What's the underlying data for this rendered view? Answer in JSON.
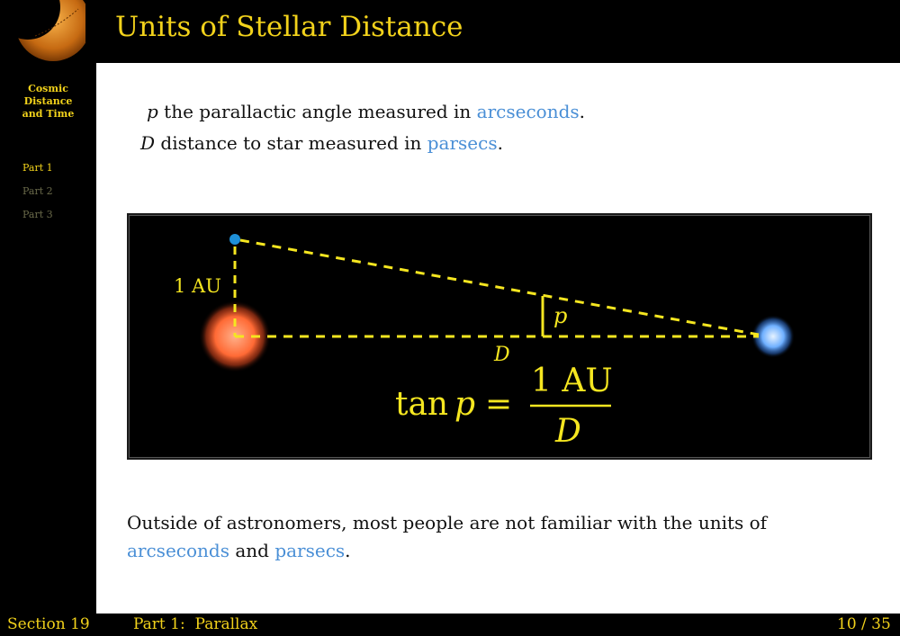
{
  "slide": {
    "title": "Units of Stellar Distance"
  },
  "sidebar": {
    "title_lines": [
      "Cosmic",
      "Distance",
      "and Time"
    ],
    "parts": [
      {
        "label": "Part 1",
        "active": true
      },
      {
        "label": "Part 2",
        "active": false
      },
      {
        "label": "Part 3",
        "active": false
      }
    ]
  },
  "definitions": [
    {
      "symbol": "p",
      "text_before": "the parallactic angle measured in ",
      "link": "arcseconds",
      "text_after": "."
    },
    {
      "symbol": "D",
      "text_before": "distance to star measured in ",
      "link": "parsecs",
      "text_after": "."
    }
  ],
  "figure": {
    "label_au": "1 AU",
    "label_angle": "p",
    "label_distance": "D",
    "equation": {
      "lhs_fn": "tan",
      "lhs_var": "p",
      "equals": "=",
      "numerator": "1 AU",
      "denominator": "D"
    },
    "colors": {
      "line": "#f5e620",
      "sun": "#ff7a45",
      "earth": "#1e90d8",
      "star": "#7ab8ff"
    }
  },
  "bottom_text": {
    "part1": "Outside of astronomers, most people are not familiar with the units of",
    "link1": "arcseconds",
    "mid": " and ",
    "link2": "parsecs",
    "end": "."
  },
  "footer": {
    "section": "Section 19",
    "part": "Part 1:  Parallax",
    "page": "10 / 35"
  }
}
